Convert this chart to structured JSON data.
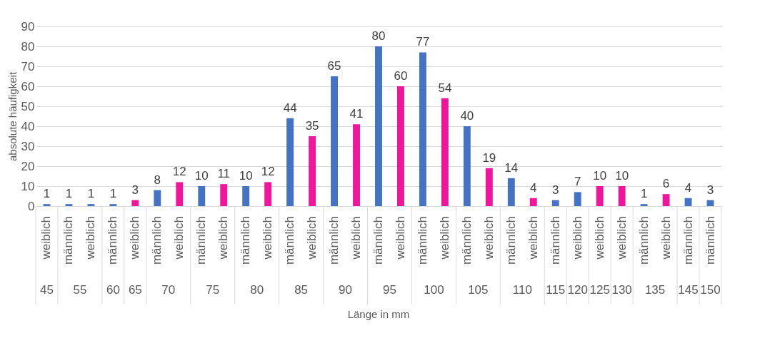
{
  "chart_data": {
    "type": "bar",
    "xlabel": "Länge in mm",
    "ylabel": "absolute häufigkeit",
    "categories": [
      "45",
      "55",
      "60",
      "65",
      "70",
      "75",
      "80",
      "85",
      "90",
      "95",
      "100",
      "105",
      "110",
      "115",
      "120",
      "125",
      "130",
      "135",
      "145",
      "150"
    ],
    "series": [
      {
        "name": "männlich",
        "values": [
          null,
          1,
          1,
          null,
          8,
          10,
          10,
          44,
          65,
          80,
          77,
          40,
          14,
          3,
          null,
          null,
          null,
          1,
          4,
          3
        ],
        "colors": [
          null,
          "#4472c4",
          "#4472c4",
          null,
          "#4472c4",
          "#4472c4",
          "#4472c4",
          "#4472c4",
          "#4472c4",
          "#4472c4",
          "#4472c4",
          "#4472c4",
          "#4472c4",
          "#4472c4",
          null,
          null,
          null,
          "#4472c4",
          "#4472c4",
          "#4472c4"
        ]
      },
      {
        "name": "weiblich",
        "values": [
          1,
          1,
          null,
          3,
          12,
          11,
          12,
          35,
          41,
          60,
          54,
          19,
          4,
          null,
          7,
          10,
          10,
          6,
          null,
          null
        ],
        "colors": [
          "#4472c4",
          "#4472c4",
          null,
          "#f0169c",
          "#f0169c",
          "#f0169c",
          "#f0169c",
          "#f0169c",
          "#f0169c",
          "#f0169c",
          "#f0169c",
          "#f0169c",
          "#f0169c",
          null,
          "#4472c4",
          "#f0169c",
          "#f0169c",
          "#f0169c",
          null,
          null
        ]
      }
    ],
    "data_labels": true,
    "ylim": [
      0,
      90
    ],
    "yticks": [
      0,
      10,
      20,
      30,
      40,
      50,
      60,
      70,
      80,
      90
    ],
    "grid": "y",
    "legend": false
  }
}
